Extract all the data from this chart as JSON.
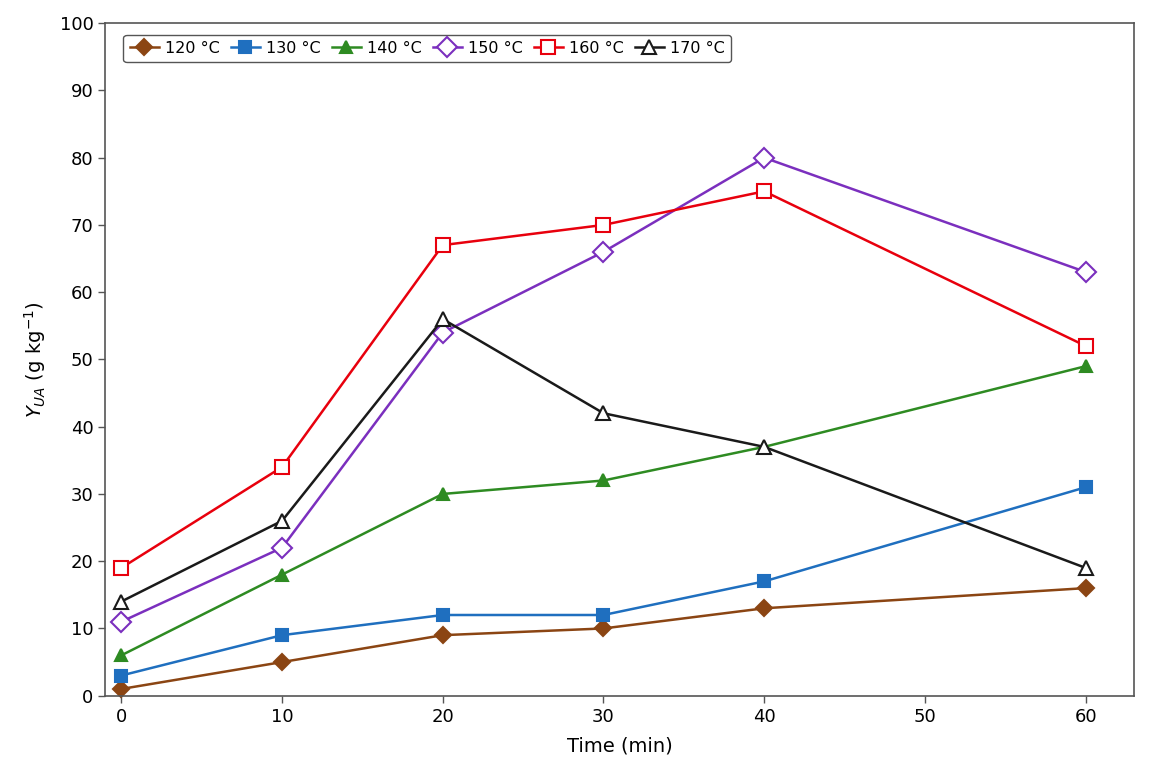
{
  "title": "",
  "xlabel": "Time (min)",
  "ylabel": "Y$_{UA}$ (g kg$^{-1}$)",
  "xlim": [
    -1,
    63
  ],
  "ylim": [
    0,
    100
  ],
  "xticks": [
    0,
    10,
    20,
    30,
    40,
    50,
    60
  ],
  "yticks": [
    0,
    10,
    20,
    30,
    40,
    50,
    60,
    70,
    80,
    90,
    100
  ],
  "series": [
    {
      "label": "120 °C",
      "color": "#8B4513",
      "marker": "D",
      "markerfacecolor": "#8B4513",
      "markeredgecolor": "#8B4513",
      "markersize": 8,
      "linewidth": 1.8,
      "x": [
        0,
        10,
        20,
        30,
        40,
        60
      ],
      "y": [
        1,
        5,
        9,
        10,
        13,
        16
      ]
    },
    {
      "label": "130 °C",
      "color": "#1F6FBF",
      "marker": "s",
      "markerfacecolor": "#1F6FBF",
      "markeredgecolor": "#1F6FBF",
      "markersize": 8,
      "linewidth": 1.8,
      "x": [
        0,
        10,
        20,
        30,
        40,
        60
      ],
      "y": [
        3,
        9,
        12,
        12,
        17,
        31
      ]
    },
    {
      "label": "140 °C",
      "color": "#2E8B22",
      "marker": "^",
      "markerfacecolor": "#2E8B22",
      "markeredgecolor": "#2E8B22",
      "markersize": 9,
      "linewidth": 1.8,
      "x": [
        0,
        10,
        20,
        30,
        40,
        60
      ],
      "y": [
        6,
        18,
        30,
        32,
        37,
        49
      ]
    },
    {
      "label": "150 °C",
      "color": "#7B2FBE",
      "marker": "D",
      "markerfacecolor": "white",
      "markeredgecolor": "#7B2FBE",
      "markersize": 10,
      "linewidth": 1.8,
      "x": [
        0,
        10,
        20,
        30,
        40,
        60
      ],
      "y": [
        11,
        22,
        54,
        66,
        80,
        63
      ]
    },
    {
      "label": "160 °C",
      "color": "#E8000D",
      "marker": "s",
      "markerfacecolor": "white",
      "markeredgecolor": "#E8000D",
      "markersize": 10,
      "linewidth": 1.8,
      "x": [
        0,
        10,
        20,
        30,
        40,
        60
      ],
      "y": [
        19,
        34,
        67,
        70,
        75,
        52
      ]
    },
    {
      "label": "170 °C",
      "color": "#1A1A1A",
      "marker": "^",
      "markerfacecolor": "white",
      "markeredgecolor": "#1A1A1A",
      "markersize": 10,
      "linewidth": 1.8,
      "x": [
        0,
        10,
        20,
        30,
        40,
        60
      ],
      "y": [
        14,
        26,
        56,
        42,
        37,
        19
      ]
    }
  ],
  "legend_ncol": 6,
  "legend_fontsize": 11.5,
  "tick_fontsize": 13,
  "label_fontsize": 14,
  "background_color": "#ffffff",
  "grid": false,
  "spine_color": "#555555",
  "spine_linewidth": 1.2
}
